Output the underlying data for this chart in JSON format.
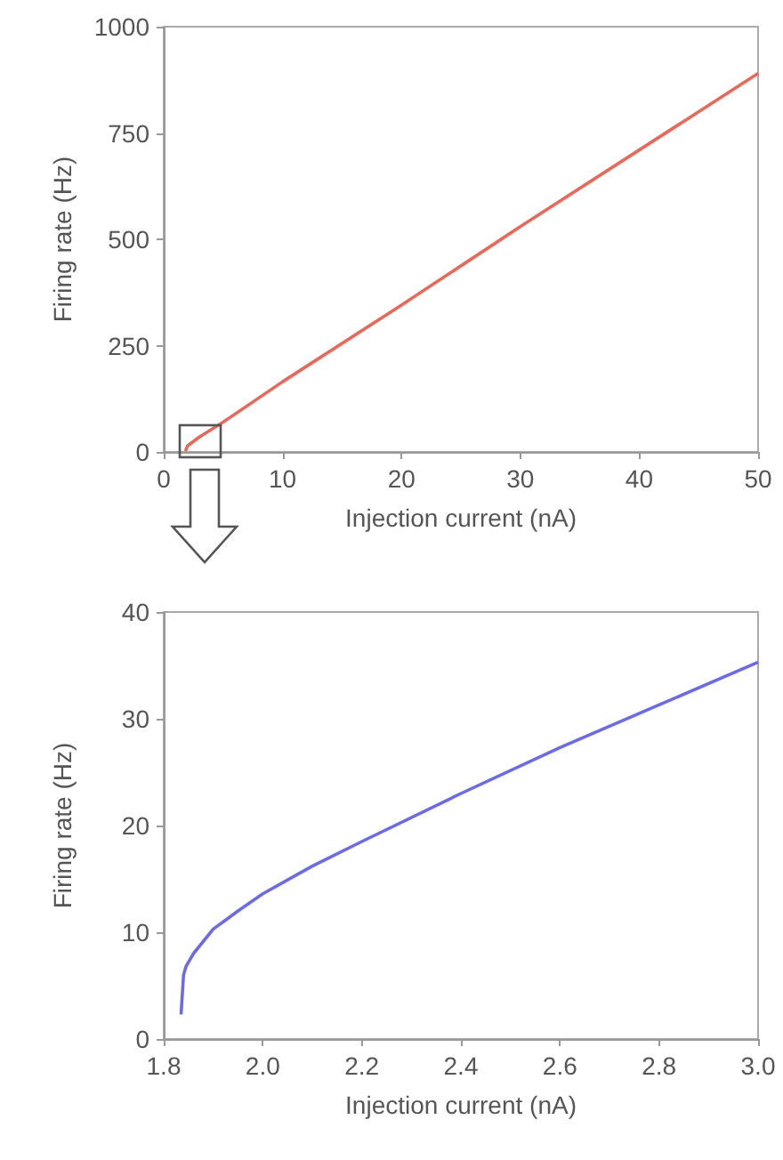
{
  "chart_data": [
    {
      "type": "line",
      "xlabel": "Injection current (nA)",
      "ylabel": "Firing rate (Hz)",
      "xlim": [
        0,
        50
      ],
      "xticks": [
        0,
        10,
        20,
        30,
        40,
        50
      ],
      "ylim": [
        0,
        1000
      ],
      "yticks": [
        0,
        250,
        500,
        750,
        1000
      ],
      "grid": false,
      "marker": "none",
      "line_style": "solid",
      "series": [
        {
          "color": "#e8685a",
          "x": [
            1.83,
            2,
            3,
            5,
            10,
            20,
            30,
            40,
            50
          ],
          "values": [
            2,
            14,
            35,
            70,
            165,
            345,
            530,
            710,
            890
          ]
        }
      ]
    },
    {
      "type": "line",
      "xlabel": "Injection current (nA)",
      "ylabel": "Firing rate (Hz)",
      "xlim": [
        1.8,
        3.0
      ],
      "xticks": [
        {
          "value": 1.8,
          "label": "1.8"
        },
        {
          "value": 2.0,
          "label": "2.0"
        },
        {
          "value": 2.2,
          "label": "2.2"
        },
        {
          "value": 2.4,
          "label": "2.4"
        },
        {
          "value": 2.6,
          "label": "2.6"
        },
        {
          "value": 2.8,
          "label": "2.8"
        },
        {
          "value": 3.0,
          "label": "3.0"
        }
      ],
      "ylim": [
        0,
        40
      ],
      "yticks": [
        0,
        10,
        20,
        30,
        40
      ],
      "grid": false,
      "marker": "none",
      "line_style": "solid",
      "series": [
        {
          "color": "#6b6be8",
          "x": [
            1.835,
            1.84,
            1.845,
            1.86,
            1.9,
            1.95,
            2.0,
            2.1,
            2.2,
            2.4,
            2.6,
            2.8,
            3.0
          ],
          "values": [
            2.3,
            6,
            6.8,
            8,
            10.3,
            12,
            13.6,
            16.2,
            18.5,
            23,
            27.3,
            31.3,
            35.3
          ]
        }
      ]
    }
  ]
}
